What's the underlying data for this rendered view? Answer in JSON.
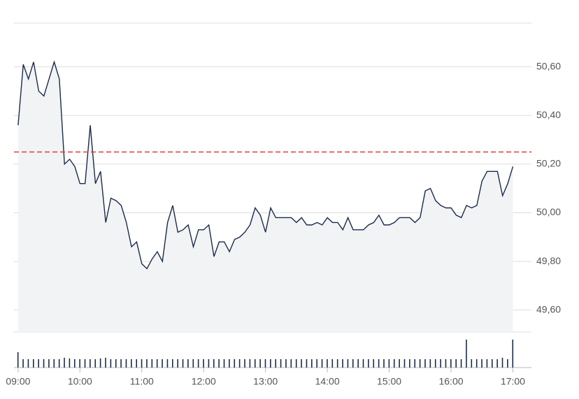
{
  "chart_data": {
    "type": "line",
    "x": [
      540,
      545,
      550,
      555,
      560,
      565,
      570,
      575,
      580,
      585,
      590,
      595,
      600,
      605,
      610,
      615,
      620,
      625,
      630,
      635,
      640,
      645,
      650,
      655,
      660,
      665,
      670,
      675,
      680,
      685,
      690,
      695,
      700,
      705,
      710,
      715,
      720,
      725,
      730,
      735,
      740,
      745,
      750,
      755,
      760,
      765,
      770,
      775,
      780,
      785,
      790,
      795,
      800,
      805,
      810,
      815,
      820,
      825,
      830,
      835,
      840,
      845,
      850,
      855,
      860,
      865,
      870,
      875,
      880,
      885,
      890,
      895,
      900,
      905,
      910,
      915,
      920,
      925,
      930,
      935,
      940,
      945,
      950,
      955,
      960,
      965,
      970,
      975,
      980,
      985,
      990,
      995,
      1000,
      1005,
      1010,
      1015,
      1020
    ],
    "series": [
      {
        "color": "#1b2b4b",
        "values": [
          50.36,
          50.61,
          50.55,
          50.62,
          50.5,
          50.48,
          50.55,
          50.62,
          50.55,
          50.2,
          50.22,
          50.19,
          50.12,
          50.12,
          50.36,
          50.12,
          50.17,
          49.96,
          50.06,
          50.05,
          50.03,
          49.96,
          49.86,
          49.88,
          49.79,
          49.77,
          49.81,
          49.84,
          49.8,
          49.96,
          50.03,
          49.92,
          49.93,
          49.95,
          49.86,
          49.93,
          49.93,
          49.95,
          49.82,
          49.88,
          49.88,
          49.84,
          49.89,
          49.9,
          49.92,
          49.95,
          50.02,
          49.99,
          49.92,
          50.02,
          49.98,
          49.98,
          49.98,
          49.98,
          49.96,
          49.98,
          49.95,
          49.95,
          49.96,
          49.95,
          49.98,
          49.96,
          49.96,
          49.93,
          49.98,
          49.93,
          49.93,
          49.93,
          49.95,
          49.96,
          49.99,
          49.95,
          49.95,
          49.96,
          49.98,
          49.98,
          49.98,
          49.96,
          49.98,
          50.09,
          50.1,
          50.05,
          50.03,
          50.02,
          50.02,
          49.99,
          49.98,
          50.03,
          50.02,
          50.03,
          50.13,
          50.17,
          50.17,
          50.17,
          50.07,
          50.12,
          50.19
        ]
      }
    ],
    "volume": {
      "color": "#1b2b4b",
      "ylim": [
        0,
        50
      ],
      "values": [
        22,
        12,
        12,
        12,
        12,
        12,
        12,
        12,
        12,
        14,
        13,
        12,
        12,
        12,
        12,
        12,
        13,
        14,
        12,
        12,
        12,
        12,
        12,
        12,
        12,
        12,
        12,
        12,
        12,
        12,
        12,
        12,
        12,
        12,
        12,
        12,
        12,
        12,
        12,
        12,
        12,
        12,
        12,
        12,
        12,
        12,
        12,
        12,
        12,
        12,
        12,
        12,
        12,
        12,
        12,
        12,
        12,
        12,
        12,
        12,
        12,
        12,
        12,
        12,
        12,
        12,
        12,
        12,
        12,
        12,
        12,
        12,
        12,
        12,
        12,
        12,
        12,
        12,
        12,
        12,
        12,
        12,
        12,
        12,
        12,
        12,
        12,
        40,
        12,
        12,
        12,
        12,
        12,
        12,
        14,
        12,
        40
      ]
    },
    "reference_line": {
      "value": 50.25,
      "color": "#e03a3a"
    },
    "xlim": [
      536,
      1038
    ],
    "xticks": [
      {
        "value": 540,
        "label": "09:00"
      },
      {
        "value": 600,
        "label": "10:00"
      },
      {
        "value": 660,
        "label": "11:00"
      },
      {
        "value": 720,
        "label": "12:00"
      },
      {
        "value": 780,
        "label": "13:00"
      },
      {
        "value": 840,
        "label": "14:00"
      },
      {
        "value": 900,
        "label": "15:00"
      },
      {
        "value": 960,
        "label": "16:00"
      },
      {
        "value": 1020,
        "label": "17:00"
      }
    ],
    "ylim": [
      49.51,
      50.78
    ],
    "yticks": [
      {
        "value": 49.6,
        "label": "49,60"
      },
      {
        "value": 49.8,
        "label": "49,80"
      },
      {
        "value": 50.0,
        "label": "50,00"
      },
      {
        "value": 50.2,
        "label": "50,20"
      },
      {
        "value": 50.4,
        "label": "50,40"
      },
      {
        "value": 50.6,
        "label": "50,60"
      }
    ],
    "grid": true
  }
}
